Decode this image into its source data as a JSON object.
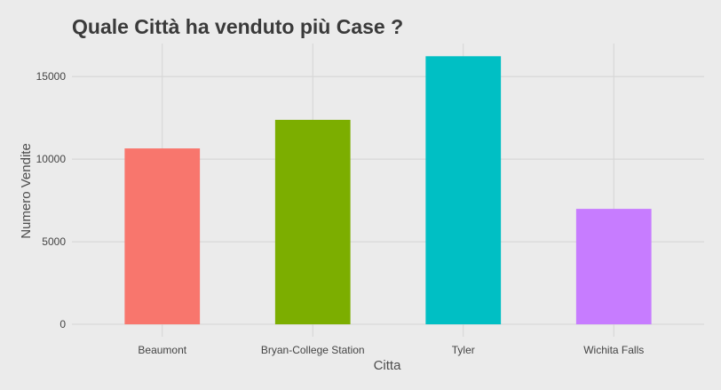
{
  "chart_data": {
    "type": "bar",
    "title": "Quale Città ha venduto più Case ?",
    "xlabel": "Citta",
    "ylabel": "Numero Vendite",
    "categories": [
      "Beaumont",
      "Bryan-College Station",
      "Tyler",
      "Wichita Falls"
    ],
    "values": [
      10650,
      12380,
      16230,
      6990
    ],
    "colors": [
      "#f8766d",
      "#7cae00",
      "#00bfc4",
      "#c77cff"
    ],
    "ylim": [
      -750,
      17000
    ],
    "yticks": [
      0,
      5000,
      10000,
      15000
    ],
    "ytick_labels": [
      "0",
      "5000",
      "10000",
      "15000"
    ],
    "grid": true,
    "legend": "none"
  }
}
